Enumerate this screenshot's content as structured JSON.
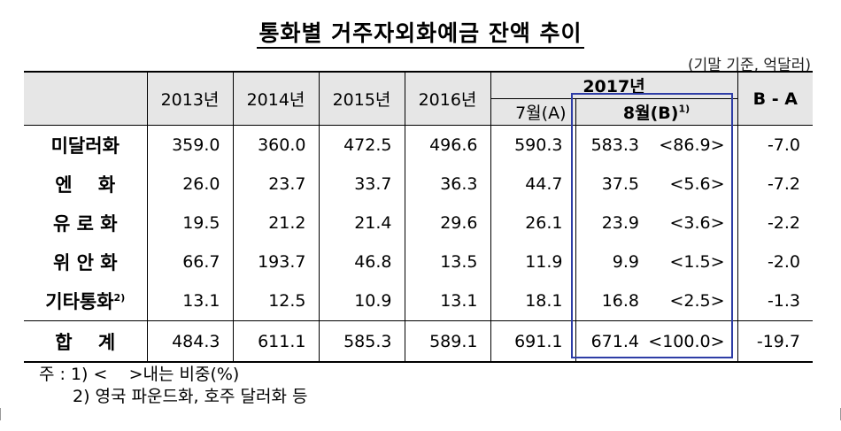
{
  "title": "통화별 거주자외화예금 잔액 추이",
  "unit": "(기말 기준, 억달러)",
  "header": {
    "y2013": "2013년",
    "y2014": "2014년",
    "y2015": "2015년",
    "y2016": "2016년",
    "y2017": "2017년",
    "july": "7월(A)",
    "aug": "8월(B)",
    "aug_sup": "1)",
    "diff": "B - A"
  },
  "rows": [
    {
      "name": "미달러화",
      "sup": "",
      "y2013": "359.0",
      "y2014": "360.0",
      "y2015": "472.5",
      "y2016": "496.6",
      "july": "590.3",
      "aug": "583.3",
      "ratio": "<86.9>",
      "diff": "-7.0"
    },
    {
      "name": "엔    화",
      "sup": "",
      "y2013": "26.0",
      "y2014": "23.7",
      "y2015": "33.7",
      "y2016": "36.3",
      "july": "44.7",
      "aug": "37.5",
      "ratio": "<5.6>",
      "diff": "-7.2"
    },
    {
      "name": "유 로 화",
      "sup": "",
      "y2013": "19.5",
      "y2014": "21.2",
      "y2015": "21.4",
      "y2016": "29.6",
      "july": "26.1",
      "aug": "23.9",
      "ratio": "<3.6>",
      "diff": "-2.2"
    },
    {
      "name": "위 안 화",
      "sup": "",
      "y2013": "66.7",
      "y2014": "193.7",
      "y2015": "46.8",
      "y2016": "13.5",
      "july": "11.9",
      "aug": "9.9",
      "ratio": "<1.5>",
      "diff": "-2.0"
    },
    {
      "name": "기타통화",
      "sup": "2)",
      "y2013": "13.1",
      "y2014": "12.5",
      "y2015": "10.9",
      "y2016": "13.1",
      "july": "18.1",
      "aug": "16.8",
      "ratio": "<2.5>",
      "diff": "-1.3"
    }
  ],
  "total": {
    "name": "합    계",
    "y2013": "484.3",
    "y2014": "611.1",
    "y2015": "585.3",
    "y2016": "589.1",
    "july": "691.1",
    "aug": "671.4",
    "ratio": "<100.0>",
    "diff": "-19.7"
  },
  "notes": {
    "note1": "주 : 1) <    >내는 비중(%)",
    "note2": "2) 영국 파운드화, 호주 달러화 등"
  },
  "colors": {
    "highlight_border": "#2e3da6",
    "header_bg": "#e6e6e6"
  }
}
